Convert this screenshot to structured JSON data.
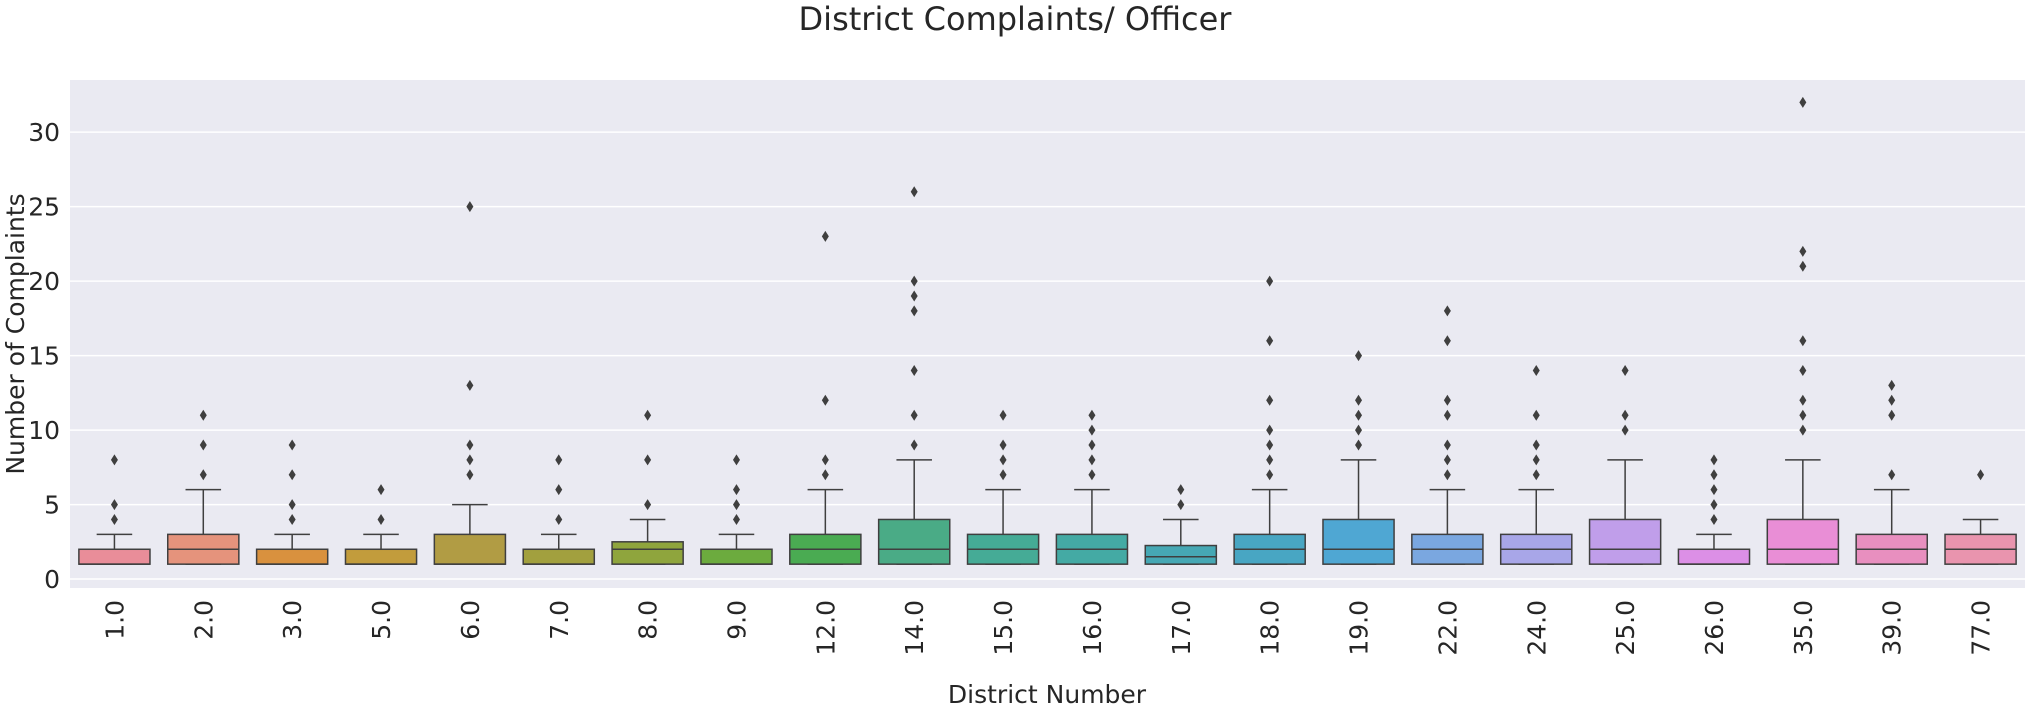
{
  "chart_data": {
    "type": "box",
    "title": "District Complaints/ Officer",
    "xlabel": "District Number",
    "ylabel": "Number of Complaints",
    "ylim": [
      -0.6,
      33.5
    ],
    "yticks": [
      0,
      5,
      10,
      15,
      20,
      25,
      30
    ],
    "grid": true,
    "categories": [
      "1.0",
      "2.0",
      "3.0",
      "5.0",
      "6.0",
      "7.0",
      "8.0",
      "9.0",
      "12.0",
      "14.0",
      "15.0",
      "16.0",
      "17.0",
      "18.0",
      "19.0",
      "22.0",
      "24.0",
      "25.0",
      "26.0",
      "35.0",
      "39.0",
      "77.0"
    ],
    "boxes": [
      {
        "q1": 1,
        "median": 1,
        "q3": 2,
        "whisker_low": 1,
        "whisker_high": 3,
        "outliers": [
          4,
          5,
          8
        ],
        "color": "#e98d99"
      },
      {
        "q1": 1,
        "median": 2,
        "q3": 3,
        "whisker_low": 1,
        "whisker_high": 6,
        "outliers": [
          7,
          9,
          11
        ],
        "color": "#e5937c"
      },
      {
        "q1": 1,
        "median": 1,
        "q3": 2,
        "whisker_low": 1,
        "whisker_high": 3,
        "outliers": [
          4,
          5,
          7,
          9
        ],
        "color": "#d9913e"
      },
      {
        "q1": 1,
        "median": 1,
        "q3": 2,
        "whisker_low": 1,
        "whisker_high": 3,
        "outliers": [
          4,
          6
        ],
        "color": "#c29c3c"
      },
      {
        "q1": 1,
        "median": 1,
        "q3": 3,
        "whisker_low": 1,
        "whisker_high": 5,
        "outliers": [
          7,
          8,
          9,
          13,
          25
        ],
        "color": "#b19c44"
      },
      {
        "q1": 1,
        "median": 1,
        "q3": 2,
        "whisker_low": 1,
        "whisker_high": 3,
        "outliers": [
          4,
          6,
          8
        ],
        "color": "#a2a03e"
      },
      {
        "q1": 1,
        "median": 2,
        "q3": 2.5,
        "whisker_low": 1,
        "whisker_high": 4,
        "outliers": [
          5,
          8,
          11
        ],
        "color": "#8fa53d"
      },
      {
        "q1": 1,
        "median": 1,
        "q3": 2,
        "whisker_low": 1,
        "whisker_high": 3,
        "outliers": [
          4,
          5,
          6,
          8
        ],
        "color": "#6cab3e"
      },
      {
        "q1": 1,
        "median": 2,
        "q3": 3,
        "whisker_low": 1,
        "whisker_high": 6,
        "outliers": [
          7,
          8,
          12,
          23
        ],
        "color": "#4aab52"
      },
      {
        "q1": 1,
        "median": 2,
        "q3": 4,
        "whisker_low": 1,
        "whisker_high": 8,
        "outliers": [
          9,
          11,
          14,
          18,
          19,
          20,
          26
        ],
        "color": "#4aab86"
      },
      {
        "q1": 1,
        "median": 2,
        "q3": 3,
        "whisker_low": 1,
        "whisker_high": 6,
        "outliers": [
          7,
          8,
          9,
          11
        ],
        "color": "#45ab96"
      },
      {
        "q1": 1,
        "median": 2,
        "q3": 3,
        "whisker_low": 1,
        "whisker_high": 6,
        "outliers": [
          7,
          8,
          9,
          10,
          11
        ],
        "color": "#44aaa4"
      },
      {
        "q1": 1,
        "median": 1.5,
        "q3": 2.25,
        "whisker_low": 1,
        "whisker_high": 4,
        "outliers": [
          5,
          6
        ],
        "color": "#46a8b4"
      },
      {
        "q1": 1,
        "median": 2,
        "q3": 3,
        "whisker_low": 1,
        "whisker_high": 6,
        "outliers": [
          7,
          8,
          9,
          10,
          12,
          16,
          20
        ],
        "color": "#48a6c3"
      },
      {
        "q1": 1,
        "median": 2,
        "q3": 4,
        "whisker_low": 1,
        "whisker_high": 8,
        "outliers": [
          9,
          10,
          11,
          12,
          15
        ],
        "color": "#4fa7d3"
      },
      {
        "q1": 1,
        "median": 2,
        "q3": 3,
        "whisker_low": 1,
        "whisker_high": 6,
        "outliers": [
          7,
          8,
          9,
          11,
          12,
          16,
          18
        ],
        "color": "#7aa7e0"
      },
      {
        "q1": 1,
        "median": 2,
        "q3": 3,
        "whisker_low": 1,
        "whisker_high": 6,
        "outliers": [
          7,
          8,
          9,
          11,
          14
        ],
        "color": "#a8a6e8"
      },
      {
        "q1": 1,
        "median": 2,
        "q3": 4,
        "whisker_low": 1,
        "whisker_high": 8,
        "outliers": [
          10,
          11,
          14
        ],
        "color": "#c09eea"
      },
      {
        "q1": 1,
        "median": 1,
        "q3": 2,
        "whisker_low": 1,
        "whisker_high": 3,
        "outliers": [
          4,
          5,
          6,
          7,
          8
        ],
        "color": "#dc8fe6"
      },
      {
        "q1": 1,
        "median": 2,
        "q3": 4,
        "whisker_low": 1,
        "whisker_high": 8,
        "outliers": [
          10,
          11,
          12,
          14,
          16,
          21,
          22,
          32
        ],
        "color": "#e98ed6"
      },
      {
        "q1": 1,
        "median": 2,
        "q3": 3,
        "whisker_low": 1,
        "whisker_high": 6,
        "outliers": [
          7,
          11,
          12,
          13
        ],
        "color": "#e88fbf"
      },
      {
        "q1": 1,
        "median": 2,
        "q3": 3,
        "whisker_low": 1,
        "whisker_high": 4,
        "outliers": [
          7
        ],
        "color": "#e994ae"
      }
    ]
  }
}
